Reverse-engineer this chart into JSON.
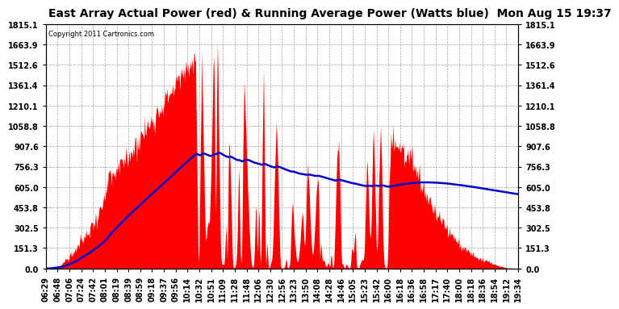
{
  "title": "East Array Actual Power (red) & Running Average Power (Watts blue)  Mon Aug 15 19:37",
  "copyright_text": "Copyright 2011 Cartronics.com",
  "background_color": "#ffffff",
  "plot_bg_color": "#ffffff",
  "grid_color": "#999999",
  "yticks": [
    0.0,
    151.3,
    302.5,
    453.8,
    605.0,
    756.3,
    907.6,
    1058.8,
    1210.1,
    1361.4,
    1512.6,
    1663.9,
    1815.1
  ],
  "ymax": 1815.1,
  "ymin": 0.0,
  "red_color": "#ff0000",
  "blue_color": "#0000cc",
  "title_fontsize": 10,
  "tick_fontsize": 7,
  "x_tick_labels": [
    "06:29",
    "06:48",
    "07:06",
    "07:24",
    "07:42",
    "08:01",
    "08:19",
    "08:39",
    "08:59",
    "09:18",
    "09:37",
    "09:56",
    "10:14",
    "10:32",
    "10:51",
    "11:09",
    "11:28",
    "11:48",
    "12:06",
    "12:30",
    "12:56",
    "13:23",
    "13:50",
    "14:08",
    "14:28",
    "14:46",
    "15:05",
    "15:23",
    "15:42",
    "16:00",
    "16:18",
    "16:36",
    "16:58",
    "17:17",
    "17:40",
    "18:00",
    "18:18",
    "18:36",
    "18:54",
    "19:12",
    "19:34"
  ],
  "n_points": 780
}
